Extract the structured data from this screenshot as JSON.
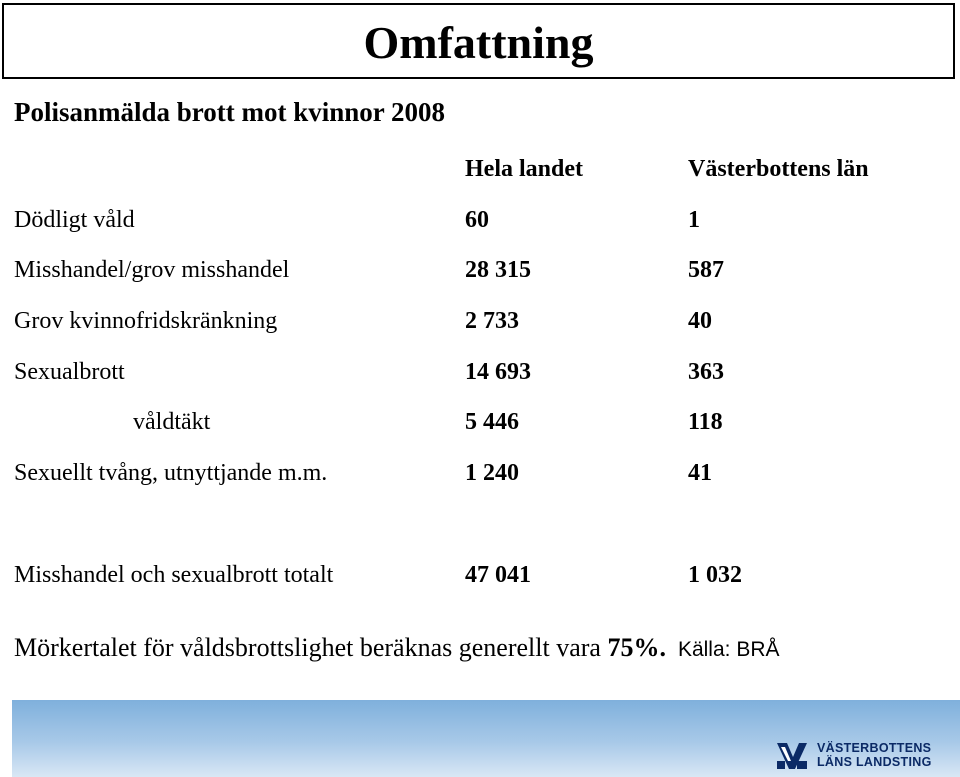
{
  "slide": {
    "title": "Omfattning",
    "subtitle": "Polisanmälda brott mot kvinnor 2008"
  },
  "table": {
    "columns": [
      "",
      "Hela landet",
      "Västerbottens län"
    ],
    "rows": [
      {
        "label": "Dödligt våld",
        "hela_landet": "60",
        "vasterbotten": "1"
      },
      {
        "label": "Misshandel/grov misshandel",
        "hela_landet": "28 315",
        "vasterbotten": "587"
      },
      {
        "label": "Grov kvinnofridskränkning",
        "hela_landet": "2 733",
        "vasterbotten": "40"
      },
      {
        "label": "Sexualbrott",
        "hela_landet": "14 693",
        "vasterbotten": "363"
      },
      {
        "label": "våldtäkt",
        "hela_landet": "5 446",
        "vasterbotten": "118"
      },
      {
        "label": "Sexuellt tvång, utnyttjande m.m.",
        "hela_landet": "1 240",
        "vasterbotten": "41"
      }
    ],
    "total": {
      "label": "Misshandel och sexualbrott totalt",
      "hela_landet": "47 041",
      "vasterbotten": "1 032"
    }
  },
  "note": {
    "text": "Mörkertalet för våldsbrottslighet beräknas generellt vara ",
    "percent": "75%.",
    "source": "Källa: BRÅ"
  },
  "logo": {
    "line1": "VÄSTERBOTTENS",
    "line2": "LÄNS LANDSTING",
    "icon": "vll-logo-icon"
  },
  "colors": {
    "text": "#000000",
    "band": "#7fb0dc",
    "logo": "#0b2a66"
  }
}
